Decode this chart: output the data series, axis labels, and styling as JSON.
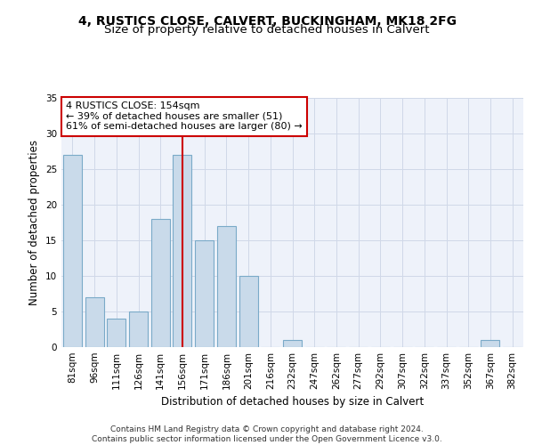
{
  "title_line1": "4, RUSTICS CLOSE, CALVERT, BUCKINGHAM, MK18 2FG",
  "title_line2": "Size of property relative to detached houses in Calvert",
  "xlabel": "Distribution of detached houses by size in Calvert",
  "ylabel": "Number of detached properties",
  "bar_labels": [
    "81sqm",
    "96sqm",
    "111sqm",
    "126sqm",
    "141sqm",
    "156sqm",
    "171sqm",
    "186sqm",
    "201sqm",
    "216sqm",
    "232sqm",
    "247sqm",
    "262sqm",
    "277sqm",
    "292sqm",
    "307sqm",
    "322sqm",
    "337sqm",
    "352sqm",
    "367sqm",
    "382sqm"
  ],
  "bar_values": [
    27,
    7,
    4,
    5,
    18,
    27,
    15,
    17,
    10,
    0,
    1,
    0,
    0,
    0,
    0,
    0,
    0,
    0,
    0,
    1,
    0
  ],
  "bar_color": "#c9daea",
  "bar_edge_color": "#7aaac8",
  "highlight_bar_index": 5,
  "highlight_line_color": "#cc0000",
  "annotation_text": "4 RUSTICS CLOSE: 154sqm\n← 39% of detached houses are smaller (51)\n61% of semi-detached houses are larger (80) →",
  "annotation_box_color": "#ffffff",
  "annotation_box_edge_color": "#cc0000",
  "ylim": [
    0,
    35
  ],
  "yticks": [
    0,
    5,
    10,
    15,
    20,
    25,
    30,
    35
  ],
  "grid_color": "#d0d8e8",
  "background_color": "#eef2fa",
  "footer_text": "Contains HM Land Registry data © Crown copyright and database right 2024.\nContains public sector information licensed under the Open Government Licence v3.0.",
  "title_fontsize": 10,
  "subtitle_fontsize": 9.5,
  "axis_label_fontsize": 8.5,
  "tick_fontsize": 7.5,
  "annotation_fontsize": 8,
  "footer_fontsize": 6.5
}
